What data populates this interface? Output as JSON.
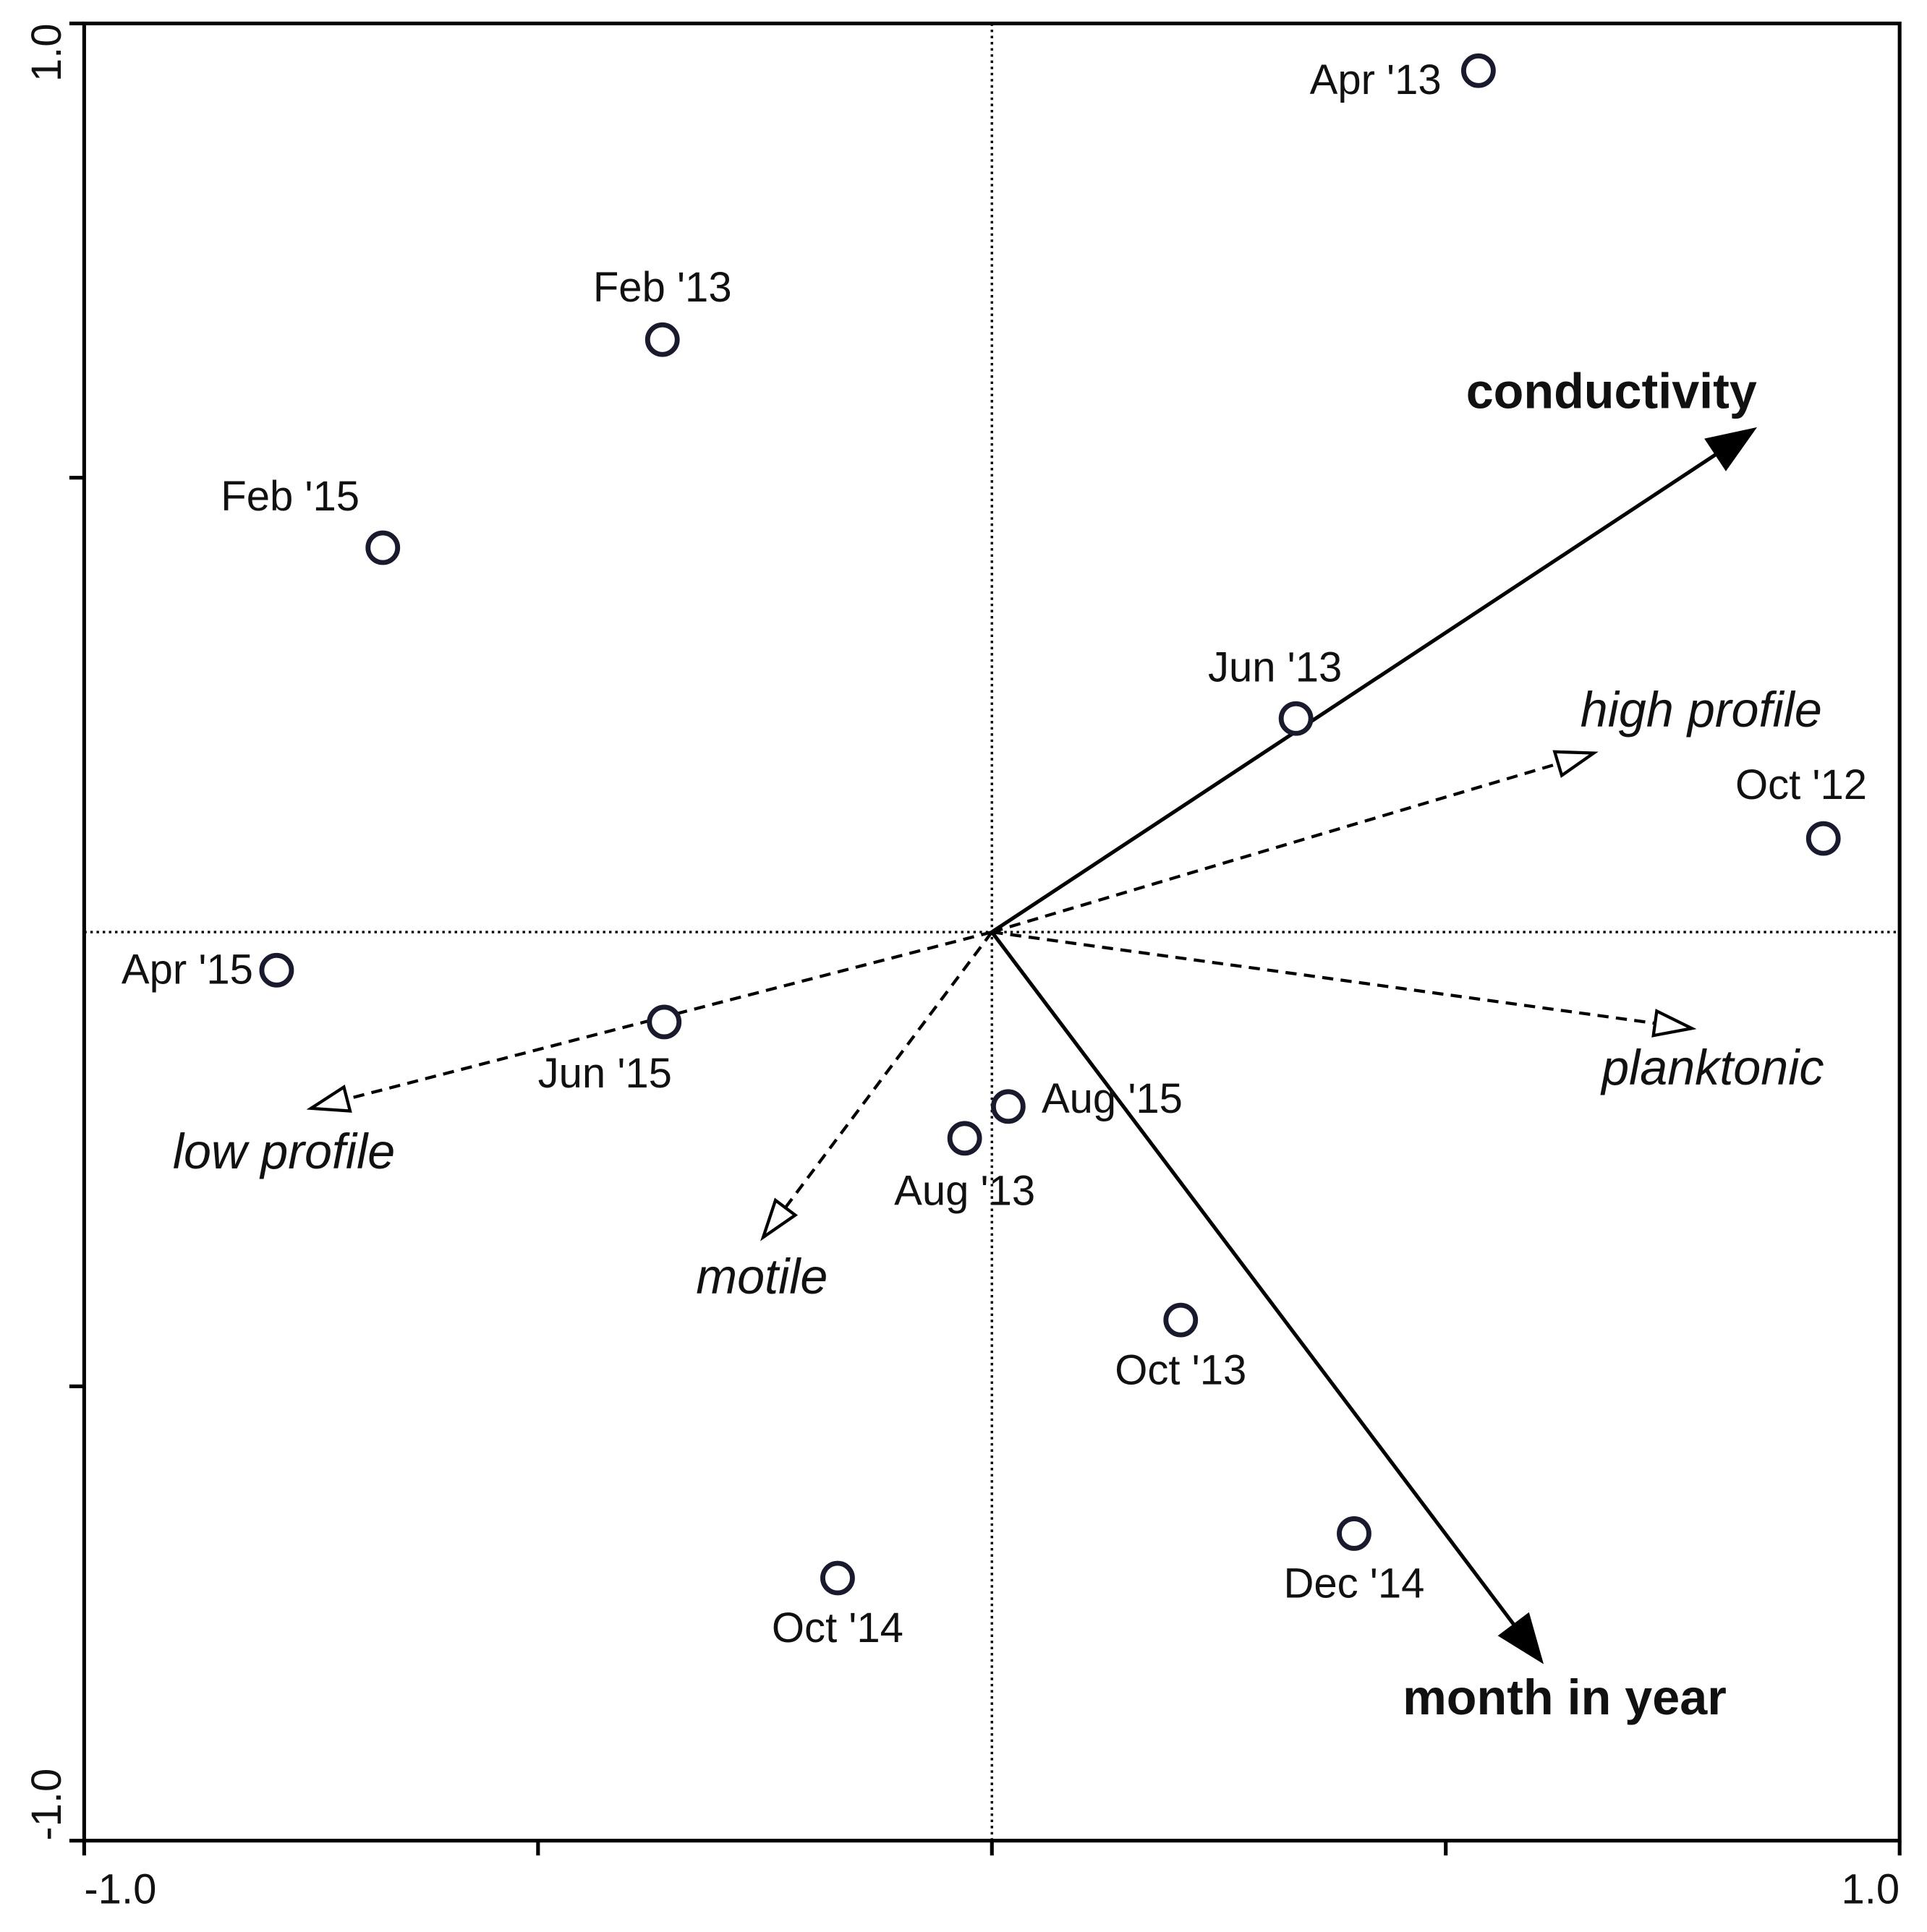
{
  "chart_data": {
    "type": "scatter",
    "points": {
      "labels": [
        "Apr '13",
        "Feb '13",
        "Feb '15",
        "Jun '13",
        "Oct '12",
        "Apr '15",
        "Jun '15",
        "Aug '15",
        "Aug '13",
        "Oct '13",
        "Dec '14",
        "Oct '14"
      ],
      "x": [
        0.536,
        -0.363,
        -0.671,
        0.335,
        0.916,
        -0.788,
        -0.361,
        0.018,
        -0.03,
        0.208,
        0.399,
        -0.17
      ],
      "y": [
        0.948,
        0.652,
        0.423,
        0.235,
        0.103,
        -0.042,
        -0.099,
        -0.192,
        -0.227,
        -0.427,
        -0.662,
        -0.711
      ],
      "color": "#1a1a2e"
    },
    "arrows": [
      {
        "name": "conductivity",
        "x": 0.839,
        "y": 0.553,
        "style": "solid"
      },
      {
        "name": "month in year",
        "x": 0.605,
        "y": -0.802,
        "style": "solid"
      },
      {
        "name": "high profile",
        "x": 0.663,
        "y": 0.197,
        "style": "dashed"
      },
      {
        "name": "planktonic",
        "x": 0.771,
        "y": -0.106,
        "style": "dashed"
      },
      {
        "name": "low profile",
        "x": -0.75,
        "y": -0.194,
        "style": "dashed"
      },
      {
        "name": "motile",
        "x": -0.252,
        "y": -0.336,
        "style": "dashed"
      }
    ],
    "xlim": [
      -1,
      1
    ],
    "ylim": [
      -1,
      1
    ],
    "xticks": [
      {
        "value": -1,
        "label": "-1.0"
      },
      {
        "value": 1,
        "label": "1.0"
      }
    ],
    "yticks": [
      {
        "value": -1,
        "label": "-1.0"
      },
      {
        "value": 1,
        "label": "1.0"
      }
    ],
    "xminor_ticks": [
      -0.5,
      0,
      0.5
    ],
    "yminor_ticks": [
      -0.5,
      0.5
    ],
    "zero_lines": true
  }
}
